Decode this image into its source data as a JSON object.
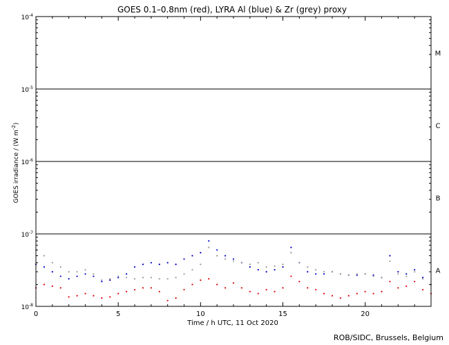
{
  "chart_data": {
    "type": "scatter",
    "title": "GOES 0.1–0.8nm (red), LYRA Al (blue) & Zr (grey) proxy",
    "xlabel": "Time / h UTC, 11 Oct 2020",
    "ylabel_main": "GOES irradiance / (W m",
    "ylabel_sup": "-2",
    "ylabel_end": ")",
    "xlim": [
      0,
      24
    ],
    "ylim": [
      1e-08,
      0.0001
    ],
    "yscale": "log",
    "x_ticks": [
      0,
      5,
      10,
      15,
      20
    ],
    "x_tick_labels": [
      "0",
      "5",
      "10",
      "15",
      "20"
    ],
    "y_ticks": [
      {
        "value": 0.0001,
        "base": "10",
        "exp": "-4"
      },
      {
        "value": 1e-05,
        "base": "10",
        "exp": "-5"
      },
      {
        "value": 1e-06,
        "base": "10",
        "exp": "-6"
      },
      {
        "value": 1e-07,
        "base": "10",
        "exp": "-7"
      },
      {
        "value": 1e-08,
        "base": "10",
        "exp": "-8"
      }
    ],
    "class_lines": [
      1e-05,
      1e-06,
      1e-07
    ],
    "class_labels": [
      {
        "label": "M",
        "log_center": -4.5
      },
      {
        "label": "C",
        "log_center": -5.5
      },
      {
        "label": "B",
        "log_center": -6.5
      },
      {
        "label": "A",
        "log_center": -7.5
      }
    ],
    "series": [
      {
        "color": "#e00000",
        "x": [
          0,
          0.5,
          1,
          1.5,
          2,
          2.5,
          3,
          3.5,
          4,
          4.5,
          5,
          5.5,
          6,
          6.5,
          7,
          7.5,
          8,
          8.5,
          9,
          9.5,
          10,
          10.5,
          11,
          11.5,
          12,
          12.5,
          13,
          13.5,
          14,
          14.5,
          15,
          15.5,
          16,
          16.5,
          17,
          17.5,
          18,
          18.5,
          19,
          19.5,
          20,
          20.5,
          21,
          21.5,
          22,
          22.5,
          23,
          23.5,
          24
        ],
        "y": [
          1.8e-08,
          2e-08,
          1.9e-08,
          1.8e-08,
          1.35e-08,
          1.4e-08,
          1.5e-08,
          1.4e-08,
          1.3e-08,
          1.35e-08,
          1.5e-08,
          1.6e-08,
          1.7e-08,
          1.8e-08,
          1.8e-08,
          1.6e-08,
          1.2e-08,
          1.3e-08,
          1.7e-08,
          2e-08,
          2.3e-08,
          2.4e-08,
          2e-08,
          1.8e-08,
          2.1e-08,
          1.8e-08,
          1.6e-08,
          1.5e-08,
          1.7e-08,
          1.6e-08,
          1.8e-08,
          2.6e-08,
          2.2e-08,
          1.8e-08,
          1.7e-08,
          1.5e-08,
          1.4e-08,
          1.3e-08,
          1.4e-08,
          1.5e-08,
          1.6e-08,
          1.5e-08,
          1.6e-08,
          2.2e-08,
          1.8e-08,
          1.9e-08,
          2.2e-08,
          1.7e-08,
          1.5e-08
        ]
      },
      {
        "color": "#0000cc",
        "x": [
          0,
          0.5,
          1,
          1.5,
          2,
          2.5,
          3,
          3.5,
          4,
          4.5,
          5,
          5.5,
          6,
          6.5,
          7,
          7.5,
          8,
          8.5,
          9,
          9.5,
          10,
          10.5,
          11,
          11.5,
          12,
          12.5,
          13,
          13.5,
          14,
          14.5,
          15,
          15.5,
          16,
          16.5,
          17,
          17.5,
          18,
          18.5,
          19,
          19.5,
          20,
          20.5,
          21,
          21.5,
          22,
          22.5,
          23,
          23.5,
          24
        ],
        "y": [
          3.8e-08,
          3.5e-08,
          3e-08,
          2.6e-08,
          2.4e-08,
          2.6e-08,
          2.8e-08,
          2.6e-08,
          2.2e-08,
          2.3e-08,
          2.5e-08,
          2.8e-08,
          3.5e-08,
          3.8e-08,
          4e-08,
          3.8e-08,
          4e-08,
          3.8e-08,
          4.5e-08,
          5e-08,
          5.5e-08,
          8e-08,
          6e-08,
          5e-08,
          4.5e-08,
          4e-08,
          3.5e-08,
          3.2e-08,
          3e-08,
          3.2e-08,
          3.5e-08,
          6.5e-08,
          4e-08,
          3e-08,
          2.8e-08,
          2.8e-08,
          3e-08,
          2.8e-08,
          2.7e-08,
          2.7e-08,
          2.8e-08,
          2.7e-08,
          2.5e-08,
          5e-08,
          3e-08,
          2.8e-08,
          3.2e-08,
          2.5e-08,
          2e-08
        ]
      },
      {
        "color": "#999999",
        "x": [
          0,
          0.5,
          1,
          1.5,
          2,
          2.5,
          3,
          3.5,
          4,
          4.5,
          5,
          5.5,
          6,
          6.5,
          7,
          7.5,
          8,
          8.5,
          9,
          9.5,
          10,
          10.5,
          11,
          11.5,
          12,
          12.5,
          13,
          13.5,
          14,
          14.5,
          15,
          15.5,
          16,
          16.5,
          17,
          17.5,
          18,
          18.5,
          19,
          19.5,
          20,
          20.5,
          21,
          21.5,
          22,
          22.5,
          23,
          23.5,
          24
        ],
        "y": [
          6e-08,
          5e-08,
          4e-08,
          3.5e-08,
          3e-08,
          3e-08,
          3.2e-08,
          2.8e-08,
          2.3e-08,
          2.4e-08,
          2.6e-08,
          2.5e-08,
          2.4e-08,
          2.5e-08,
          2.5e-08,
          2.4e-08,
          2.4e-08,
          2.5e-08,
          2.8e-08,
          3.2e-08,
          3.8e-08,
          6.5e-08,
          5e-08,
          4.5e-08,
          4.2e-08,
          4e-08,
          3.8e-08,
          4e-08,
          3.5e-08,
          3.6e-08,
          3.8e-08,
          5.5e-08,
          4e-08,
          3.5e-08,
          3.2e-08,
          3e-08,
          3e-08,
          2.8e-08,
          2.7e-08,
          2.8e-08,
          2.8e-08,
          2.6e-08,
          2.5e-08,
          4.2e-08,
          2.8e-08,
          2.6e-08,
          3e-08,
          2.4e-08,
          2e-08
        ]
      }
    ],
    "grid": false
  },
  "credit": "ROB/SIDC, Brussels, Belgium"
}
